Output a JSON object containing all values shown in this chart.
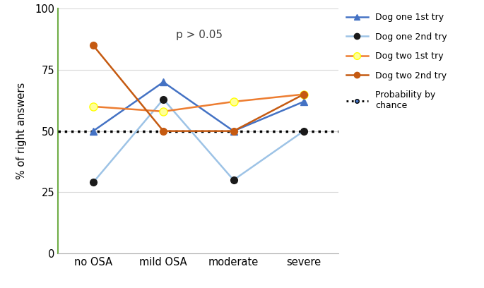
{
  "categories": [
    "no OSA",
    "mild OSA",
    "moderate",
    "severe"
  ],
  "dog_one_1st": [
    50,
    70,
    50,
    62
  ],
  "dog_one_2nd": [
    29,
    63,
    30,
    50
  ],
  "dog_two_1st": [
    60,
    58,
    62,
    65
  ],
  "dog_two_2nd": [
    85,
    50,
    50,
    65
  ],
  "chance_line": 50,
  "ylabel": "% of right answers",
  "annotation": "p > 0.05",
  "ylim": [
    0,
    100
  ],
  "yticks": [
    0,
    25,
    50,
    75,
    100
  ],
  "color_dog1_1st": "#4472C4",
  "color_dog1_2nd": "#9DC3E6",
  "color_dog2_1st": "#E2EFDA",
  "color_dog2_2nd": "#C55A11",
  "color_chance": "#000000",
  "left_spine_color": "#70AD47",
  "legend_labels": [
    "Dog one 1st try",
    "Dog one 2nd try",
    "Dog two 1st try",
    "Dog two 2nd try",
    "Probability by\nchance"
  ]
}
